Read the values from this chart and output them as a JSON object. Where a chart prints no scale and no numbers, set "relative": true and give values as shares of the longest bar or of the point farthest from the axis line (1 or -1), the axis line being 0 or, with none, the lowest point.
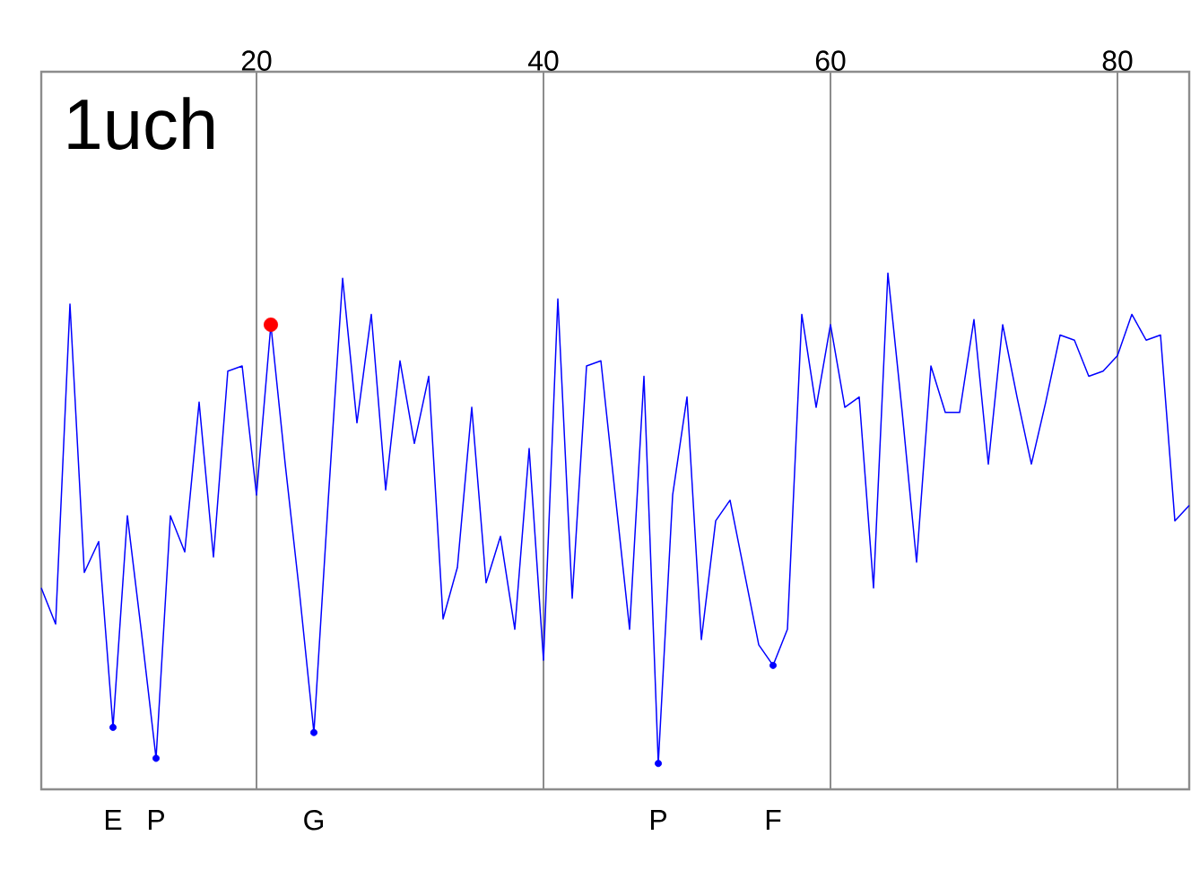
{
  "chart_data": {
    "type": "line",
    "title": "1uch",
    "relative": true,
    "x": [
      5,
      6,
      7,
      8,
      9,
      10,
      11,
      12,
      13,
      14,
      15,
      16,
      17,
      18,
      19,
      20,
      21,
      22,
      23,
      24,
      25,
      26,
      27,
      28,
      29,
      30,
      31,
      32,
      33,
      34,
      35,
      36,
      37,
      38,
      39,
      40,
      41,
      42,
      43,
      44,
      45,
      46,
      47,
      48,
      49,
      50,
      51,
      52,
      53,
      54,
      55,
      56,
      57,
      58,
      59,
      60,
      61,
      62,
      63,
      64,
      65,
      66,
      67,
      68,
      69,
      70,
      71,
      72,
      73,
      74,
      75,
      76,
      77,
      78,
      79,
      80,
      81,
      82,
      83,
      84,
      85
    ],
    "xlim": [
      5,
      85
    ],
    "xticks": [
      20,
      40,
      60,
      80
    ],
    "grid": "x",
    "series": [
      {
        "color": "#0000ff",
        "values": [
          0.39,
          0.32,
          0.94,
          0.42,
          0.48,
          0.12,
          0.53,
          0.3,
          0.06,
          0.53,
          0.46,
          0.75,
          0.45,
          0.81,
          0.82,
          0.57,
          0.9,
          0.63,
          0.38,
          0.11,
          0.56,
          0.99,
          0.71,
          0.92,
          0.58,
          0.83,
          0.67,
          0.8,
          0.33,
          0.43,
          0.74,
          0.4,
          0.49,
          0.31,
          0.66,
          0.25,
          0.95,
          0.37,
          0.82,
          0.83,
          0.57,
          0.31,
          0.8,
          0.05,
          0.57,
          0.76,
          0.29,
          0.52,
          0.56,
          0.42,
          0.28,
          0.24,
          0.31,
          0.92,
          0.74,
          0.9,
          0.74,
          0.76,
          0.39,
          1,
          0.73,
          0.44,
          0.82,
          0.73,
          0.73,
          0.91,
          0.63,
          0.9,
          0.76,
          0.63,
          0.75,
          0.88,
          0.87,
          0.8,
          0.81,
          0.84,
          0.92,
          0.87,
          0.88,
          0.52,
          0.55
        ]
      },
      {
        "type": "scatter",
        "marker": "circle",
        "color": "#0000ff",
        "x": [
          10,
          13,
          24,
          48,
          56
        ],
        "values": [
          0.12,
          0.06,
          0.11,
          0.05,
          0.24
        ]
      },
      {
        "type": "scatter",
        "marker": "circle",
        "color": "#ff0000",
        "x": [
          21
        ],
        "values": [
          0.9
        ]
      }
    ],
    "annotations": [
      "E",
      "P",
      "G",
      "P",
      "F"
    ]
  }
}
